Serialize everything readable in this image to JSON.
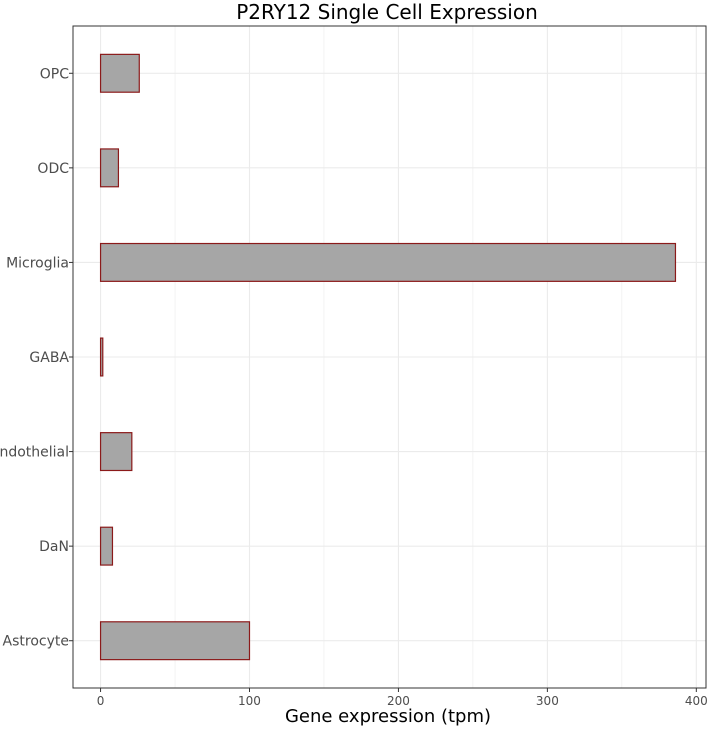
{
  "chart_data": {
    "type": "bar",
    "orientation": "horizontal",
    "title": "P2RY12 Single Cell Expression",
    "xlabel": "Gene expression (tpm)",
    "ylabel": "",
    "categories": [
      "Astrocyte",
      "DaN",
      "Endothelial",
      "GABA",
      "Microglia",
      "ODC",
      "OPC"
    ],
    "values": [
      100,
      8,
      21,
      1.5,
      386,
      12,
      26
    ],
    "xlim": [
      -18.5,
      406.5
    ],
    "xticks": [
      0,
      100,
      200,
      300,
      400
    ],
    "grid": true,
    "legend": "none",
    "colors": {
      "bar_fill": "#a6a6a6",
      "bar_stroke": "#8b1a1a",
      "grid": "#ebebeb",
      "panel_border": "#333333"
    }
  }
}
